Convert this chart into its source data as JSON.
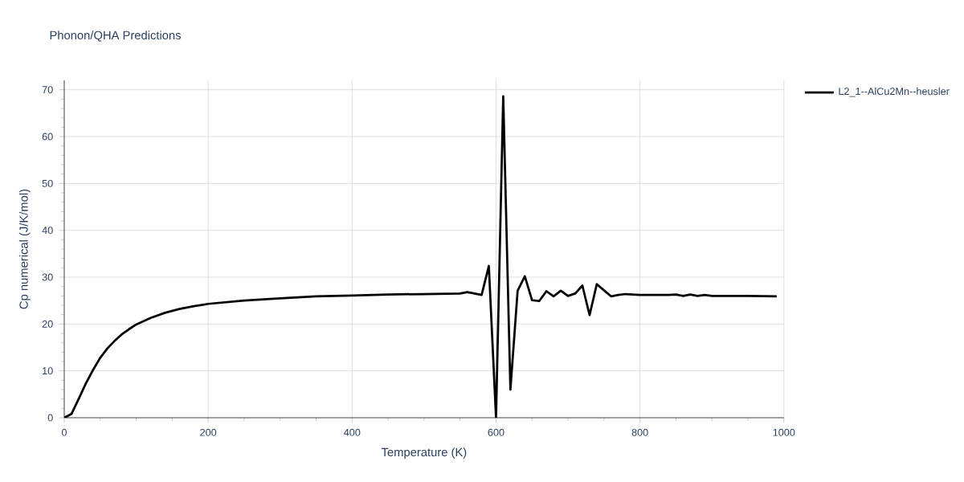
{
  "chart_data": {
    "type": "line",
    "title": "Phonon/QHA Predictions",
    "xlabel": "Temperature (K)",
    "ylabel": "Cp numerical (J/K/mol)",
    "xlim": [
      0,
      1000
    ],
    "ylim": [
      0,
      72
    ],
    "xticks": [
      0,
      200,
      400,
      600,
      800,
      1000
    ],
    "yticks": [
      0,
      10,
      20,
      30,
      40,
      50,
      60,
      70
    ],
    "grid": true,
    "legend": "top right",
    "series": [
      {
        "name": "L2_1--AlCu2Mn--heusler",
        "color": "#000000",
        "x": [
          0,
          10,
          20,
          30,
          40,
          50,
          60,
          70,
          80,
          90,
          100,
          120,
          140,
          160,
          180,
          200,
          250,
          300,
          350,
          400,
          450,
          500,
          550,
          560,
          580,
          590,
          600,
          610,
          620,
          630,
          640,
          650,
          660,
          670,
          680,
          690,
          700,
          710,
          720,
          730,
          740,
          750,
          760,
          770,
          780,
          800,
          820,
          840,
          850,
          860,
          870,
          880,
          890,
          900,
          950,
          990
        ],
        "values": [
          0,
          0.8,
          4,
          7.3,
          10.2,
          12.8,
          14.8,
          16.4,
          17.8,
          18.9,
          19.9,
          21.3,
          22.4,
          23.2,
          23.8,
          24.3,
          25.0,
          25.5,
          25.9,
          26.1,
          26.3,
          26.4,
          26.5,
          26.8,
          26.2,
          32.4,
          0,
          68.6,
          6.0,
          27.1,
          30.2,
          25.1,
          24.9,
          27.0,
          25.9,
          27.1,
          26.0,
          26.5,
          28.2,
          21.9,
          28.5,
          27.2,
          25.9,
          26.2,
          26.4,
          26.2,
          26.2,
          26.2,
          26.3,
          26.0,
          26.3,
          26.0,
          26.2,
          26.0,
          26.0,
          25.9
        ]
      }
    ]
  }
}
